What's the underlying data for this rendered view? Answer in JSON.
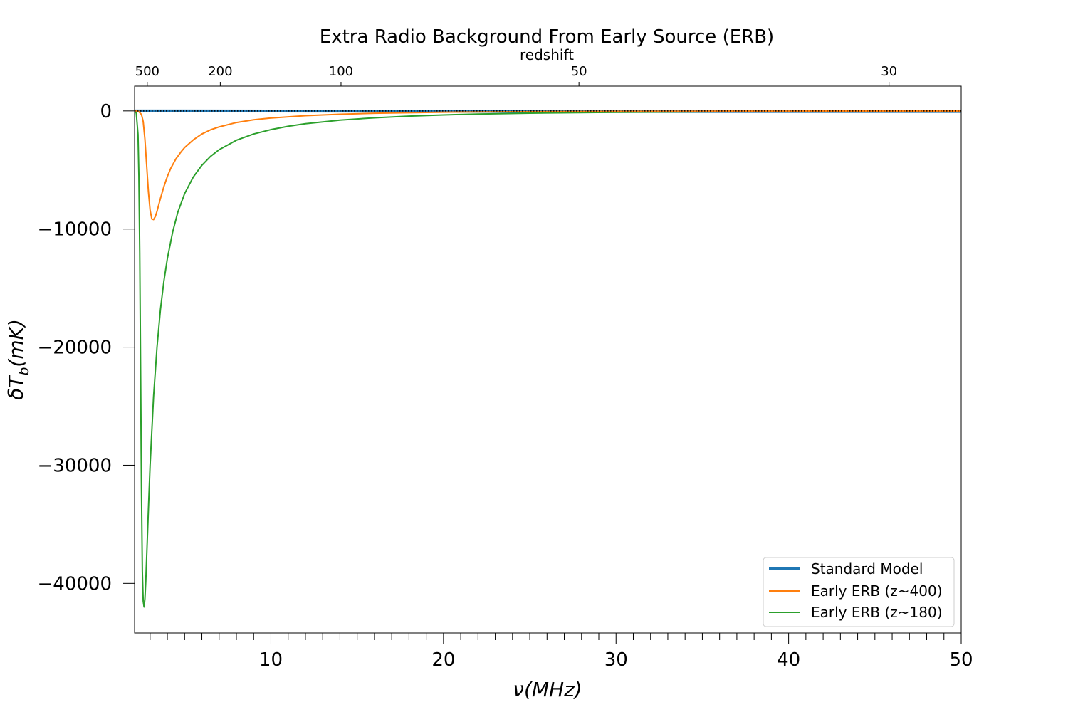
{
  "chart_data": {
    "type": "line",
    "title": "Extra Radio Background From Early Source (ERB)",
    "xlabel": "ν(MHz)",
    "ylabel_main": "δT",
    "ylabel_sub": "b",
    "ylabel_tail": "(mK)",
    "xlim": [
      2.1,
      50
    ],
    "ylim": [
      -44200,
      2100
    ],
    "x_ticks_major": [
      10,
      20,
      30,
      40,
      50
    ],
    "y_ticks": [
      0,
      -10000,
      -20000,
      -30000,
      -40000
    ],
    "y_tick_labels": [
      "0",
      "−10000",
      "−20000",
      "−30000",
      "−40000"
    ],
    "secondary_x": {
      "label": "redshift",
      "ticks": [
        500,
        200,
        100,
        50,
        30
      ],
      "tick_labels": [
        "500",
        "200",
        "100",
        "50",
        "30"
      ],
      "relation": "nu = 1420.4 / (1 + z)"
    },
    "zero_line": {
      "style": "dotted",
      "color": "#000000"
    },
    "legend_position": "lower-right",
    "series": [
      {
        "name": "Standard Model",
        "color": "#1f77b4",
        "x": [
          2.1,
          5,
          10,
          15,
          20,
          25,
          30,
          35,
          40,
          45,
          50
        ],
        "y": [
          0,
          -5,
          -10,
          -20,
          -30,
          -40,
          -45,
          -50,
          -50,
          -50,
          -45
        ]
      },
      {
        "name": "Early ERB (z~400)",
        "color": "#ff7f0e",
        "x": [
          2.1,
          2.3,
          2.5,
          2.6,
          2.7,
          2.8,
          2.9,
          3.0,
          3.1,
          3.2,
          3.3,
          3.4,
          3.5,
          3.6,
          3.8,
          4.0,
          4.2,
          4.5,
          4.8,
          5.0,
          5.5,
          6.0,
          6.5,
          7.0,
          8.0,
          9.0,
          10.0,
          12.0,
          14.0,
          16.0,
          18.0,
          20.0,
          22.0,
          25.0,
          30.0,
          35.0,
          40.0,
          45.0,
          50.0
        ],
        "y": [
          0,
          0,
          -300,
          -900,
          -2400,
          -4600,
          -6800,
          -8400,
          -9150,
          -9200,
          -8950,
          -8500,
          -7950,
          -7400,
          -6400,
          -5550,
          -4850,
          -4050,
          -3450,
          -3100,
          -2450,
          -1950,
          -1600,
          -1350,
          -980,
          -750,
          -600,
          -400,
          -280,
          -200,
          -150,
          -110,
          -85,
          -60,
          -35,
          -22,
          -15,
          -10,
          -7
        ]
      },
      {
        "name": "Early ERB (z~180)",
        "color": "#2ca02c",
        "x": [
          2.1,
          2.2,
          2.3,
          2.35,
          2.4,
          2.45,
          2.5,
          2.55,
          2.6,
          2.65,
          2.7,
          2.75,
          2.8,
          2.9,
          3.0,
          3.2,
          3.4,
          3.6,
          3.8,
          4.0,
          4.3,
          4.6,
          5.0,
          5.5,
          6.0,
          6.5,
          7.0,
          8.0,
          9.0,
          10.0,
          11.0,
          12.0,
          14.0,
          16.0,
          18.0,
          20.0,
          22.0,
          25.0,
          30.0,
          35.0,
          40.0,
          45.0,
          50.0
        ],
        "y": [
          0,
          -200,
          -2000,
          -5500,
          -12000,
          -22000,
          -32000,
          -39000,
          -41500,
          -42000,
          -41300,
          -39800,
          -37800,
          -33800,
          -30000,
          -24200,
          -20000,
          -16800,
          -14400,
          -12500,
          -10300,
          -8600,
          -7000,
          -5600,
          -4600,
          -3850,
          -3280,
          -2480,
          -1950,
          -1580,
          -1300,
          -1080,
          -780,
          -580,
          -440,
          -340,
          -270,
          -190,
          -115,
          -75,
          -50,
          -35,
          -25
        ]
      }
    ]
  }
}
